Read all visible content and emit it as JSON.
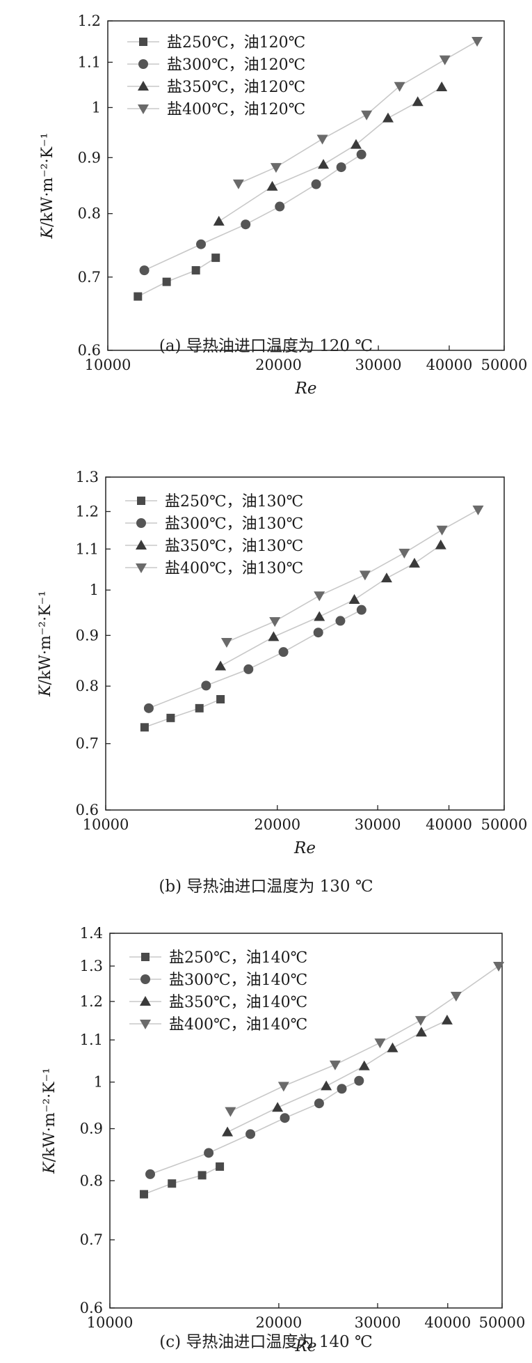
{
  "chart_data": [
    {
      "type": "scatter",
      "caption": "(a) 导热油进口温度为 120 ℃",
      "xlabel": "Re",
      "ylabel_italic": "K",
      "ylabel_rest": "/kW·m⁻²·K⁻¹",
      "x_scale": "log",
      "y_scale": "log",
      "xlim": [
        10000,
        50000
      ],
      "ylim": [
        0.6,
        1.2
      ],
      "x_ticks": [
        10000,
        20000,
        30000,
        40000,
        50000
      ],
      "y_ticks": [
        0.6,
        0.7,
        0.8,
        0.9,
        1,
        1.1,
        1.2
      ],
      "legend_position": "top-left",
      "series": [
        {
          "name": "盐250℃，油120℃",
          "marker": "square",
          "x": [
            11300,
            12700,
            14300,
            15500
          ],
          "y": [
            0.672,
            0.693,
            0.71,
            0.729
          ]
        },
        {
          "name": "盐300℃，油120℃",
          "marker": "circle",
          "x": [
            11600,
            14600,
            17500,
            20100,
            23300,
            25800,
            28000
          ],
          "y": [
            0.71,
            0.75,
            0.782,
            0.812,
            0.851,
            0.882,
            0.906
          ]
        },
        {
          "name": "盐350℃，油120℃",
          "marker": "triangle-up",
          "x": [
            15700,
            19500,
            24000,
            27400,
            31200,
            35200,
            38800
          ],
          "y": [
            0.787,
            0.847,
            0.887,
            0.925,
            0.978,
            1.012,
            1.044
          ]
        },
        {
          "name": "盐400℃，油120℃",
          "marker": "triangle-down",
          "x": [
            17000,
            19800,
            23900,
            28600,
            32700,
            39300,
            44800
          ],
          "y": [
            0.852,
            0.882,
            0.936,
            0.985,
            1.046,
            1.106,
            1.15
          ]
        }
      ]
    },
    {
      "type": "scatter",
      "caption": "(b) 导热油进口温度为 130 ℃",
      "xlabel": "Re",
      "ylabel_italic": "K",
      "ylabel_rest": "/kW·m⁻²·K⁻¹",
      "x_scale": "log",
      "y_scale": "log",
      "xlim": [
        10000,
        50000
      ],
      "ylim": [
        0.6,
        1.3
      ],
      "x_ticks": [
        10000,
        20000,
        30000,
        40000,
        50000
      ],
      "y_ticks": [
        0.6,
        0.7,
        0.8,
        0.9,
        1,
        1.1,
        1.2,
        1.3
      ],
      "legend_position": "top-left",
      "series": [
        {
          "name": "盐250℃，油130℃",
          "marker": "square",
          "x": [
            11700,
            13000,
            14600,
            15900
          ],
          "y": [
            0.727,
            0.743,
            0.76,
            0.776
          ]
        },
        {
          "name": "盐300℃，油130℃",
          "marker": "circle",
          "x": [
            11900,
            15000,
            17800,
            20500,
            23600,
            25800,
            28100
          ],
          "y": [
            0.76,
            0.801,
            0.832,
            0.866,
            0.906,
            0.931,
            0.955
          ]
        },
        {
          "name": "盐350℃，油130℃",
          "marker": "triangle-up",
          "x": [
            15900,
            19700,
            23700,
            27300,
            31100,
            34800,
            38700
          ],
          "y": [
            0.838,
            0.897,
            0.94,
            0.978,
            1.028,
            1.064,
            1.11
          ]
        },
        {
          "name": "盐400℃，油130℃",
          "marker": "triangle-down",
          "x": [
            16300,
            19800,
            23700,
            28500,
            33400,
            38900,
            45000
          ],
          "y": [
            0.886,
            0.93,
            0.987,
            1.036,
            1.09,
            1.15,
            1.205
          ]
        }
      ]
    },
    {
      "type": "scatter",
      "caption": "(c) 导热油进口温度为 140 ℃",
      "xlabel": "Re",
      "ylabel_italic": "K",
      "ylabel_rest": "/kW·m⁻²·K⁻¹",
      "x_scale": "log",
      "y_scale": "log",
      "xlim": [
        10000,
        50000
      ],
      "ylim": [
        0.6,
        1.4
      ],
      "x_ticks": [
        10000,
        20000,
        30000,
        40000,
        50000
      ],
      "y_ticks": [
        0.6,
        0.7,
        0.8,
        0.9,
        1,
        1.1,
        1.2,
        1.3,
        1.4
      ],
      "legend_position": "top-left",
      "series": [
        {
          "name": "盐250℃，油140℃",
          "marker": "square",
          "x": [
            11500,
            12900,
            14600,
            15700
          ],
          "y": [
            0.776,
            0.795,
            0.81,
            0.826
          ]
        },
        {
          "name": "盐300℃，油140℃",
          "marker": "circle",
          "x": [
            11800,
            15000,
            17800,
            20500,
            23600,
            25900,
            27800
          ],
          "y": [
            0.812,
            0.852,
            0.889,
            0.922,
            0.953,
            0.985,
            1.003
          ]
        },
        {
          "name": "盐350℃，油140℃",
          "marker": "triangle-up",
          "x": [
            16200,
            19900,
            24300,
            28400,
            31900,
            35900,
            39900
          ],
          "y": [
            0.893,
            0.944,
            0.991,
            1.037,
            1.08,
            1.119,
            1.15
          ]
        },
        {
          "name": "盐400℃，油140℃",
          "marker": "triangle-down",
          "x": [
            16400,
            20400,
            25200,
            30300,
            35800,
            41400,
            49300
          ],
          "y": [
            0.936,
            0.991,
            1.04,
            1.093,
            1.15,
            1.215,
            1.3
          ]
        }
      ]
    }
  ]
}
